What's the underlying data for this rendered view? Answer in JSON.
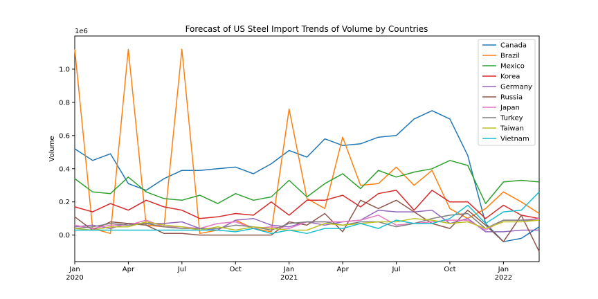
{
  "chart_data": {
    "type": "line",
    "title": "Forecast of US Steel Import Trends of Volume by Countries",
    "xlabel": "",
    "ylabel": "Volume",
    "y_multiplier": "1e6",
    "ylim": [
      -0.16,
      1.2
    ],
    "y_ticks": [
      0.0,
      0.2,
      0.4,
      0.6,
      0.8,
      1.0
    ],
    "y_tick_labels": [
      "0.0",
      "0.2",
      "0.4",
      "0.6",
      "0.8",
      "1.0"
    ],
    "x": [
      "2020-01",
      "2020-02",
      "2020-03",
      "2020-04",
      "2020-05",
      "2020-06",
      "2020-07",
      "2020-08",
      "2020-09",
      "2020-10",
      "2020-11",
      "2020-12",
      "2021-01",
      "2021-02",
      "2021-03",
      "2021-04",
      "2021-05",
      "2021-06",
      "2021-07",
      "2021-08",
      "2021-09",
      "2021-10",
      "2021-11",
      "2021-12",
      "2022-01",
      "2022-02",
      "2022-03"
    ],
    "x_ticks": [
      {
        "month_index": 0,
        "label": "Jan",
        "year": "2020"
      },
      {
        "month_index": 3,
        "label": "Apr",
        "year": ""
      },
      {
        "month_index": 6,
        "label": "Jul",
        "year": ""
      },
      {
        "month_index": 9,
        "label": "Oct",
        "year": ""
      },
      {
        "month_index": 12,
        "label": "Jan",
        "year": "2021"
      },
      {
        "month_index": 15,
        "label": "Apr",
        "year": ""
      },
      {
        "month_index": 18,
        "label": "Jul",
        "year": ""
      },
      {
        "month_index": 21,
        "label": "Oct",
        "year": ""
      },
      {
        "month_index": 24,
        "label": "Jan",
        "year": "2022"
      }
    ],
    "legend_position": "top-right",
    "grid": false,
    "series": [
      {
        "name": "Canada",
        "color": "#1f77b4",
        "values": [
          0.52,
          0.45,
          0.49,
          0.31,
          0.27,
          0.34,
          0.39,
          0.39,
          0.4,
          0.41,
          0.37,
          0.43,
          0.51,
          0.47,
          0.58,
          0.54,
          0.55,
          0.59,
          0.6,
          0.7,
          0.75,
          0.7,
          0.48,
          0.07,
          -0.04,
          -0.02,
          0.05
        ]
      },
      {
        "name": "Brazil",
        "color": "#ff7f0e",
        "values": [
          1.12,
          0.04,
          0.01,
          1.12,
          0.06,
          0.05,
          1.12,
          0.01,
          0.03,
          0.09,
          0.04,
          0.02,
          0.76,
          0.22,
          0.16,
          0.59,
          0.3,
          0.31,
          0.41,
          0.3,
          0.39,
          0.16,
          0.1,
          0.16,
          0.26,
          0.2,
          0.13
        ]
      },
      {
        "name": "Mexico",
        "color": "#2ca02c",
        "values": [
          0.34,
          0.26,
          0.25,
          0.35,
          0.26,
          0.22,
          0.21,
          0.24,
          0.19,
          0.25,
          0.21,
          0.23,
          0.33,
          0.23,
          0.31,
          0.37,
          0.28,
          0.39,
          0.35,
          0.38,
          0.4,
          0.45,
          0.42,
          0.19,
          0.32,
          0.33,
          0.32
        ]
      },
      {
        "name": "Korea",
        "color": "#d62728",
        "values": [
          0.17,
          0.14,
          0.19,
          0.15,
          0.21,
          0.17,
          0.15,
          0.1,
          0.11,
          0.13,
          0.12,
          0.2,
          0.12,
          0.21,
          0.21,
          0.24,
          0.17,
          0.25,
          0.27,
          0.15,
          0.27,
          0.2,
          0.2,
          0.1,
          0.18,
          0.12,
          0.1
        ]
      },
      {
        "name": "Germany",
        "color": "#9467bd",
        "values": [
          0.05,
          0.06,
          0.04,
          0.07,
          0.07,
          0.07,
          0.08,
          0.04,
          0.03,
          0.09,
          0.1,
          0.06,
          0.05,
          0.08,
          0.06,
          0.08,
          0.09,
          0.15,
          0.14,
          0.14,
          0.15,
          0.07,
          0.1,
          0.02,
          0.02,
          0.03,
          0.03
        ]
      },
      {
        "name": "Russia",
        "color": "#8c564b",
        "values": [
          0.11,
          0.03,
          0.08,
          0.07,
          0.06,
          0.01,
          0.01,
          0.0,
          0.0,
          0.0,
          0.0,
          0.0,
          0.08,
          0.06,
          0.13,
          0.02,
          0.21,
          0.16,
          0.21,
          0.14,
          0.07,
          0.04,
          0.15,
          0.06,
          -0.04,
          0.12,
          -0.1
        ]
      },
      {
        "name": "Japan",
        "color": "#e377c2",
        "values": [
          0.06,
          0.04,
          0.06,
          0.06,
          0.09,
          0.05,
          0.05,
          0.04,
          0.07,
          0.08,
          0.04,
          0.05,
          0.04,
          0.08,
          0.08,
          0.08,
          0.09,
          0.12,
          0.06,
          0.07,
          0.08,
          0.09,
          0.09,
          0.03,
          0.09,
          0.09,
          0.1
        ]
      },
      {
        "name": "Turkey",
        "color": "#7f7f7f",
        "values": [
          0.04,
          0.05,
          0.07,
          0.06,
          0.07,
          0.05,
          0.04,
          0.04,
          0.04,
          0.06,
          0.05,
          0.03,
          0.07,
          0.08,
          0.08,
          0.06,
          0.08,
          0.08,
          0.05,
          0.07,
          0.1,
          0.12,
          0.13,
          0.04,
          0.09,
          0.09,
          0.09
        ]
      },
      {
        "name": "Taiwan",
        "color": "#bcbd22",
        "values": [
          0.04,
          0.03,
          0.05,
          0.05,
          0.08,
          0.06,
          0.05,
          0.03,
          0.05,
          0.03,
          0.05,
          0.04,
          0.03,
          0.03,
          0.07,
          0.06,
          0.07,
          0.08,
          0.08,
          0.1,
          0.09,
          0.07,
          0.08,
          0.04,
          0.08,
          0.08,
          0.09
        ]
      },
      {
        "name": "Vietnam",
        "color": "#17becf",
        "values": [
          0.03,
          0.03,
          0.03,
          0.03,
          0.03,
          0.03,
          0.03,
          0.03,
          0.03,
          0.02,
          0.04,
          0.01,
          0.03,
          0.01,
          0.04,
          0.04,
          0.07,
          0.04,
          0.09,
          0.07,
          0.07,
          0.1,
          0.18,
          0.07,
          0.14,
          0.15,
          0.26
        ]
      }
    ]
  }
}
